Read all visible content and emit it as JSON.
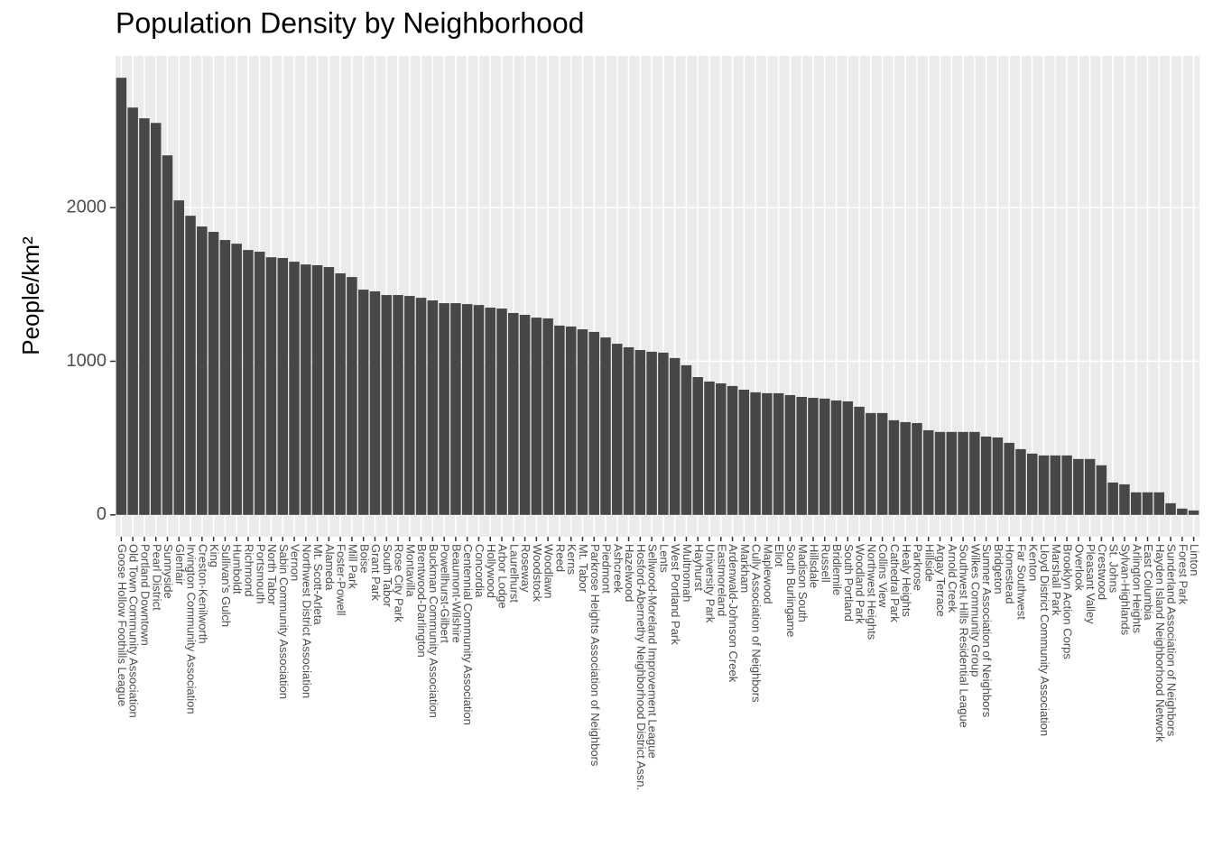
{
  "chart_data": {
    "type": "bar",
    "title": "Population Density by Neighborhood",
    "y_label": "People/km²",
    "categories": [
      "Goose Hollow Foothills League",
      "Old Town Community Association",
      "Portland Downtown",
      "Pearl District",
      "Sunnyside",
      "Glenfair",
      "Irvington Community Association",
      "Creston-Kenilworth",
      "King",
      "Sullivan's Gulch",
      "Humboldt",
      "Richmond",
      "Portsmouth",
      "North Tabor",
      "Sabin Community Association",
      "Vernon",
      "Northwest District Association",
      "Mt. Scott-Arleta",
      "Alameda",
      "Foster-Powell",
      "Mill Park",
      "Boise",
      "Grant Park",
      "South Tabor",
      "Rose City Park",
      "Montavilla",
      "Brentwood-Darlington",
      "Buckman Community Association",
      "Powellhurst-Gilbert",
      "Beaumont-Wilshire",
      "Centennial Community Association",
      "Concordia",
      "Hollywood",
      "Arbor Lodge",
      "Laurelhurst",
      "Roseway",
      "Woodstock",
      "Woodlawn",
      "Reed",
      "Kerns",
      "Mt. Tabor",
      "Parkrose Heights Association of Neighbors",
      "Piedmont",
      "Ashcreek",
      "Hazelwood",
      "Hosford-Abernethy Neighborhood District Assn.",
      "Sellwood-Moreland Improvement League",
      "Lents",
      "West Portland Park",
      "Multnomah",
      "Hayhurst",
      "University Park",
      "Eastmoreland",
      "Ardenwald-Johnson Creek",
      "Markham",
      "Cully Association of Neighbors",
      "Maplewood",
      "Eliot",
      "South Burlingame",
      "Madison South",
      "Hillsdale",
      "Russell",
      "Bridlemile",
      "South Portland",
      "Woodland Park",
      "Northwest Heights",
      "Collins View",
      "Cathedral Park",
      "Healy Heights",
      "Parkrose",
      "Hillside",
      "Argay Terrace",
      "Arnold Creek",
      "Southwest Hills Residential League",
      "Wilkes Community Group",
      "Sumner Association of Neighbors",
      "Bridgeton",
      "Homestead",
      "Far Southwest",
      "Kenton",
      "Lloyd District Community Association",
      "Marshall Park",
      "Brooklyn Action Corps",
      "Overlook",
      "Pleasant Valley",
      "Crestwood",
      "St. Johns",
      "Sylvan-Highlands",
      "Arlington Heights",
      "East Columbia",
      "Hayden Island Neighborhood Network",
      "Sunderland Association of Neighbors",
      "Forest Park",
      "Linton"
    ],
    "values": [
      2845,
      2651,
      2581,
      2551,
      2340,
      2047,
      1947,
      1877,
      1842,
      1789,
      1765,
      1724,
      1713,
      1677,
      1672,
      1648,
      1630,
      1625,
      1613,
      1572,
      1548,
      1466,
      1455,
      1431,
      1431,
      1425,
      1413,
      1396,
      1378,
      1378,
      1372,
      1366,
      1349,
      1343,
      1314,
      1302,
      1284,
      1279,
      1232,
      1226,
      1208,
      1191,
      1155,
      1114,
      1091,
      1073,
      1062,
      1056,
      1021,
      974,
      897,
      868,
      856,
      839,
      815,
      798,
      792,
      792,
      780,
      768,
      762,
      757,
      745,
      739,
      704,
      663,
      663,
      616,
      604,
      598,
      551,
      540,
      540,
      540,
      540,
      510,
      504,
      469,
      428,
      399,
      387,
      387,
      387,
      364,
      364,
      323,
      211,
      199,
      147,
      147,
      147,
      76,
      41,
      29
    ],
    "color": "#474747",
    "ylim": [
      -142,
      2987
    ],
    "yticks": [
      0,
      1000,
      2000
    ],
    "grid": true
  }
}
